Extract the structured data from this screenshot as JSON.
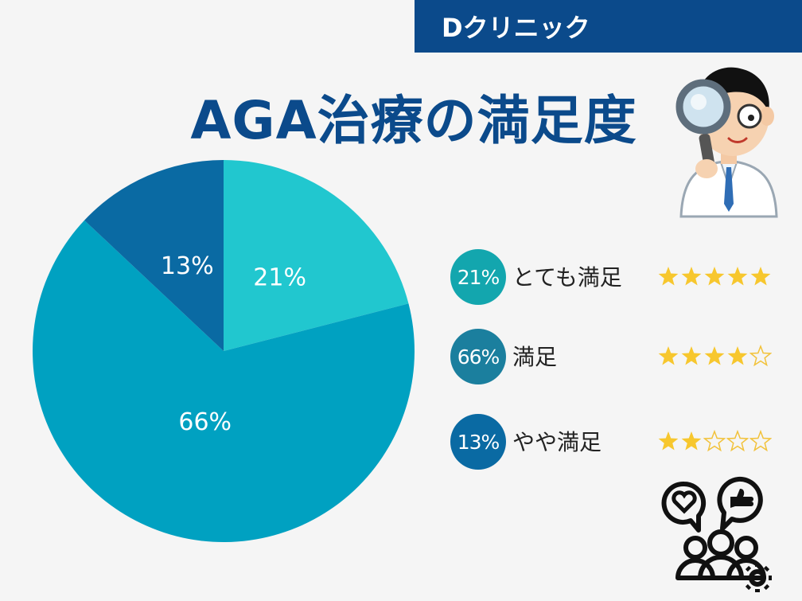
{
  "brand": {
    "name": "Dクリニック"
  },
  "page": {
    "title": "AGA治療の満足度"
  },
  "colors": {
    "brand_blue": "#0b4a8b",
    "slice_very": "#21c7cf",
    "slice_satisfied": "#00a1c1",
    "slice_somewhat": "#0a6aa3",
    "star_fill": "#f7c72e",
    "star_empty_stroke": "#f2c23a"
  },
  "chart_data": {
    "type": "pie",
    "title": "AGA治療の満足度",
    "slices": [
      {
        "label": "とても満足",
        "value": 21,
        "display": "21%",
        "color": "#21c7cf"
      },
      {
        "label": "満足",
        "value": 66,
        "display": "66%",
        "color": "#00a1c1"
      },
      {
        "label": "やや満足",
        "value": 13,
        "display": "13%",
        "color": "#0a6aa3"
      }
    ]
  },
  "legend": {
    "items": [
      {
        "percent": "21%",
        "label": "とても満足",
        "stars": 5,
        "badge_color": "#13a6ae"
      },
      {
        "percent": "66%",
        "label": "満足",
        "stars": 4,
        "badge_color": "#1b7f9e"
      },
      {
        "percent": "13%",
        "label": "やや満足",
        "stars": 2,
        "badge_color": "#0a6aa3"
      }
    ],
    "star_max": 5
  },
  "icons": {
    "doctor": "doctor-with-magnifier-icon",
    "community": "community-feedback-icon"
  }
}
